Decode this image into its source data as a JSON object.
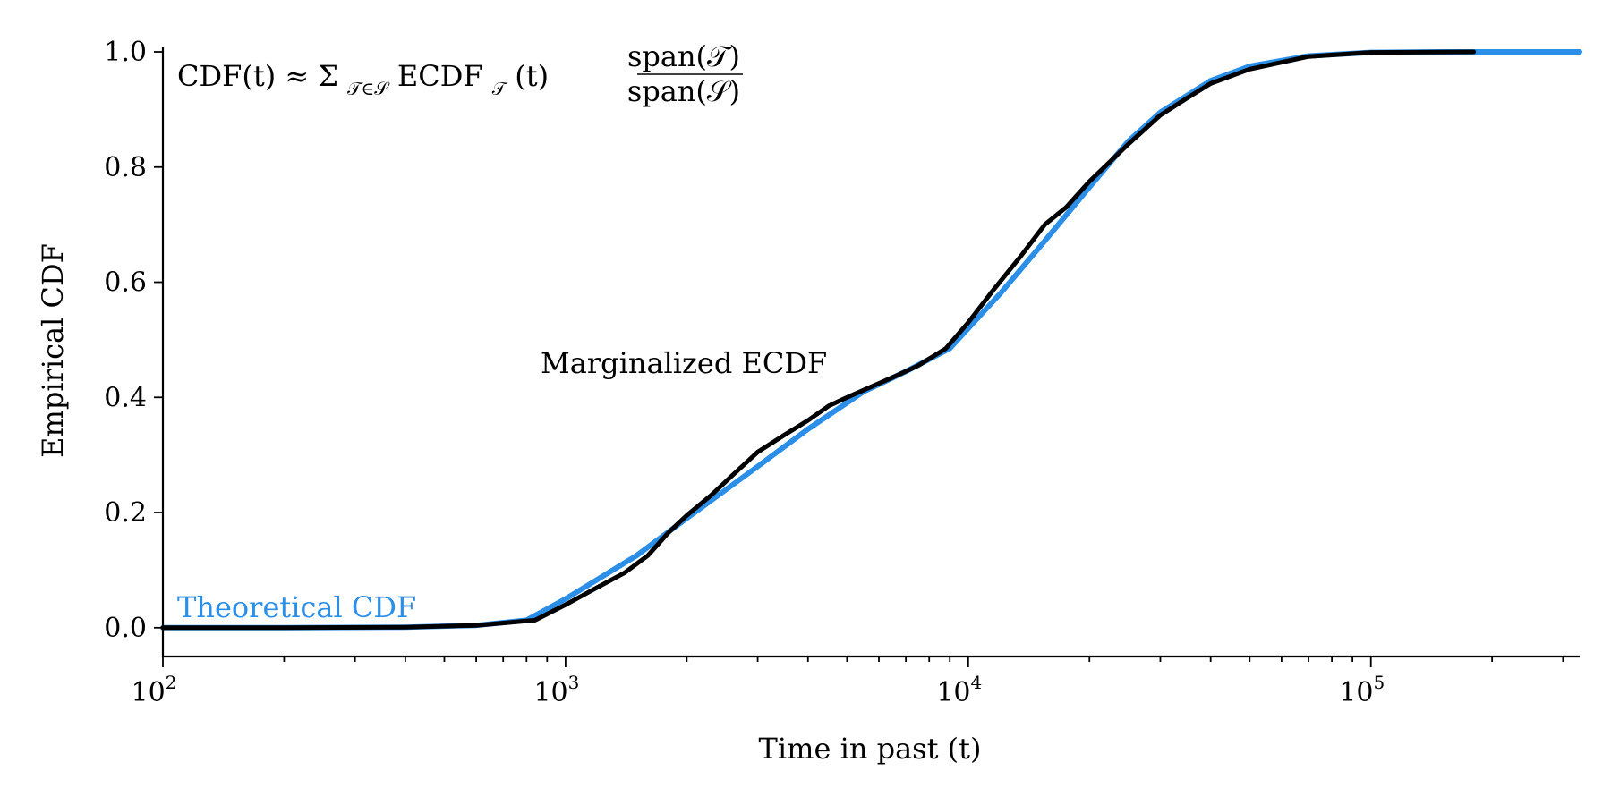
{
  "chart_data": {
    "type": "line",
    "title": "",
    "xlabel": "Time in past (t)",
    "ylabel": "Empirical CDF",
    "xscale": "log",
    "xlim": [
      100,
      330000
    ],
    "ylim": [
      -0.05,
      1.0
    ],
    "grid": false,
    "x_ticks": [
      {
        "value": 100,
        "label_base": "10",
        "label_exp": "2"
      },
      {
        "value": 1000,
        "label_base": "10",
        "label_exp": "3"
      },
      {
        "value": 10000,
        "label_base": "10",
        "label_exp": "4"
      },
      {
        "value": 100000,
        "label_base": "10",
        "label_exp": "5"
      }
    ],
    "y_ticks": [
      {
        "value": 0.0,
        "label": "0.0"
      },
      {
        "value": 0.2,
        "label": "0.2"
      },
      {
        "value": 0.4,
        "label": "0.4"
      },
      {
        "value": 0.6,
        "label": "0.6"
      },
      {
        "value": 0.8,
        "label": "0.8"
      },
      {
        "value": 1.0,
        "label": "1.0"
      }
    ],
    "annotations": {
      "formula": "CDF(t) ≈ Σ",
      "formula_sub": "𝒯∈𝒮",
      "formula_mid": " ECDF",
      "formula_mid_sub": "𝒯",
      "formula_tail": "(t)",
      "frac_num": "span(𝒯)",
      "frac_den": "span(𝒮)",
      "marginalized": "Marginalized ECDF",
      "theoretical": "Theoretical CDF"
    },
    "series": [
      {
        "color": "#2b8fe8",
        "x": [
          100,
          200,
          400,
          600,
          800,
          1000,
          1500,
          2000,
          3000,
          4000,
          5500,
          7000,
          9000,
          12000,
          15000,
          20000,
          25000,
          30000,
          40000,
          50000,
          70000,
          100000,
          150000,
          330000
        ],
        "y": [
          0.0,
          0.0,
          0.001,
          0.004,
          0.013,
          0.05,
          0.125,
          0.19,
          0.28,
          0.345,
          0.41,
          0.445,
          0.485,
          0.58,
          0.66,
          0.765,
          0.845,
          0.895,
          0.95,
          0.975,
          0.993,
          0.999,
          1.0,
          1.0
        ]
      },
      {
        "color": "#000000",
        "x": [
          100,
          200,
          400,
          600,
          840,
          1000,
          1200,
          1400,
          1600,
          1800,
          2000,
          2300,
          2600,
          3000,
          3500,
          4000,
          4500,
          5000,
          5600,
          6500,
          7500,
          8800,
          10000,
          11500,
          13500,
          15500,
          17500,
          20000,
          25000,
          30000,
          35000,
          40000,
          50000,
          70000,
          100000,
          180000
        ],
        "y": [
          0.0,
          0.0,
          0.001,
          0.004,
          0.013,
          0.04,
          0.07,
          0.095,
          0.125,
          0.165,
          0.195,
          0.23,
          0.265,
          0.305,
          0.335,
          0.36,
          0.385,
          0.4,
          0.415,
          0.435,
          0.455,
          0.485,
          0.53,
          0.585,
          0.645,
          0.7,
          0.73,
          0.775,
          0.84,
          0.89,
          0.92,
          0.945,
          0.97,
          0.992,
          0.999,
          1.0
        ]
      }
    ]
  }
}
